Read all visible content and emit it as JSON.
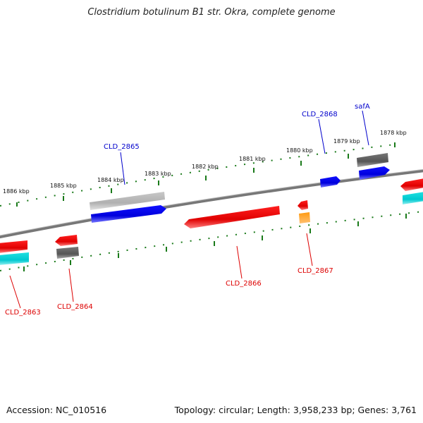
{
  "title": "Clostridium botulinum B1 str. Okra, complete genome",
  "footer": {
    "accession": "Accession: NC_010516",
    "stats": "Topology: circular; Length: 3,958,233 bp; Genes: 3,761"
  },
  "tick_labels": [
    "1886 kbp",
    "1885 kbp",
    "1884 kbp",
    "1883 kbp",
    "1882 kbp",
    "1881 kbp",
    "1880 kbp",
    "1879 kbp",
    "1878 kbp"
  ],
  "genes": [
    {
      "label": "CLD_2863",
      "strand": "minus",
      "color": "#ee0000"
    },
    {
      "label": "CLD_2864",
      "strand": "minus",
      "color": "#ee0000"
    },
    {
      "label": "CLD_2865",
      "strand": "plus",
      "color": "#0000cc"
    },
    {
      "label": "CLD_2866",
      "strand": "minus",
      "color": "#ee0000"
    },
    {
      "label": "CLD_2867",
      "strand": "minus",
      "color": "#ee0000"
    },
    {
      "label": "CLD_2868",
      "strand": "plus",
      "color": "#0000cc"
    },
    {
      "label": "safA",
      "strand": "plus",
      "color": "#0000cc"
    }
  ],
  "colors": {
    "backbone": "#777777",
    "tick": "#1a7a1a",
    "cds_plus": "#0000ee",
    "cds_minus": "#ee0000",
    "rna": "#00cccc",
    "gene_gray": "#5a5a5a",
    "gene_light": "#b8b8b8",
    "misc": "#ff8800"
  }
}
